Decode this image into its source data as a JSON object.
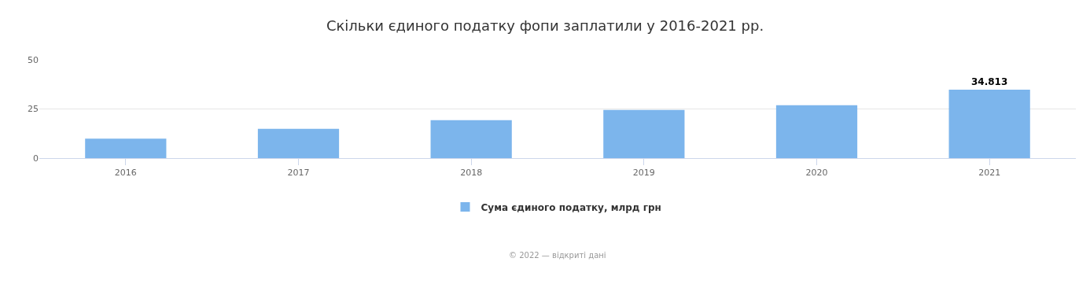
{
  "chart_data": {
    "type": "bar",
    "title": "Скільки єдиного податку фопи заплатили у 2016-2021 рр.",
    "categories": [
      "2016",
      "2017",
      "2018",
      "2019",
      "2020",
      "2021"
    ],
    "series": [
      {
        "name": "Сума єдиного податку, млрд грн",
        "color": "#7cb5ec",
        "values": [
          9.9,
          14.9,
          19.3,
          24.5,
          26.9,
          34.813
        ],
        "value_labels": [
          null,
          null,
          null,
          null,
          null,
          "34.813"
        ]
      }
    ],
    "ylim": [
      0,
      50
    ],
    "yticks": [
      0,
      25,
      50
    ],
    "grid": "y",
    "legend": "bottom",
    "annotations": [
      "© 2022 — відкриті дані"
    ]
  }
}
